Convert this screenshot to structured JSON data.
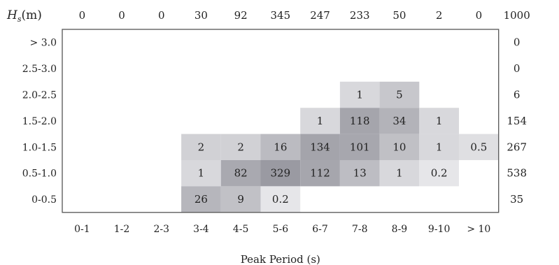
{
  "chart_data": {
    "type": "heatmap",
    "title": "",
    "xlabel": "Peak Period (s)",
    "ylabel": "Hₛ(m)",
    "ylabel_main": "H",
    "ylabel_sub": "s",
    "ylabel_unit": "(m)",
    "x_categories": [
      "0-1",
      "1-2",
      "2-3",
      "3-4",
      "4-5",
      "5-6",
      "6-7",
      "7-8",
      "8-9",
      "9-10",
      "> 10"
    ],
    "y_categories": [
      "> 3.0",
      "2.5-3.0",
      "2.0-2.5",
      "1.5-2.0",
      "1.0-1.5",
      "0.5-1.0",
      "0-0.5"
    ],
    "column_totals": [
      "0",
      "0",
      "0",
      "30",
      "92",
      "345",
      "247",
      "233",
      "50",
      "2",
      "0"
    ],
    "grand_total": "1000",
    "row_totals": [
      "0",
      "0",
      "6",
      "154",
      "267",
      "538",
      "35"
    ],
    "cells": [
      {
        "row": "2.0-2.5",
        "col": "7-8",
        "value": "1"
      },
      {
        "row": "2.0-2.5",
        "col": "8-9",
        "value": "5"
      },
      {
        "row": "1.5-2.0",
        "col": "6-7",
        "value": "1"
      },
      {
        "row": "1.5-2.0",
        "col": "7-8",
        "value": "118"
      },
      {
        "row": "1.5-2.0",
        "col": "8-9",
        "value": "34"
      },
      {
        "row": "1.5-2.0",
        "col": "9-10",
        "value": "1"
      },
      {
        "row": "1.0-1.5",
        "col": "3-4",
        "value": "2"
      },
      {
        "row": "1.0-1.5",
        "col": "4-5",
        "value": "2"
      },
      {
        "row": "1.0-1.5",
        "col": "5-6",
        "value": "16"
      },
      {
        "row": "1.0-1.5",
        "col": "6-7",
        "value": "134"
      },
      {
        "row": "1.0-1.5",
        "col": "7-8",
        "value": "101"
      },
      {
        "row": "1.0-1.5",
        "col": "8-9",
        "value": "10"
      },
      {
        "row": "1.0-1.5",
        "col": "9-10",
        "value": "1"
      },
      {
        "row": "1.0-1.5",
        "col": "> 10",
        "value": "0.5"
      },
      {
        "row": "0.5-1.0",
        "col": "3-4",
        "value": "1"
      },
      {
        "row": "0.5-1.0",
        "col": "4-5",
        "value": "82"
      },
      {
        "row": "0.5-1.0",
        "col": "5-6",
        "value": "329"
      },
      {
        "row": "0.5-1.0",
        "col": "6-7",
        "value": "112"
      },
      {
        "row": "0.5-1.0",
        "col": "7-8",
        "value": "13"
      },
      {
        "row": "0.5-1.0",
        "col": "8-9",
        "value": "1"
      },
      {
        "row": "0.5-1.0",
        "col": "9-10",
        "value": "0.2"
      },
      {
        "row": "0-0.5",
        "col": "3-4",
        "value": "26"
      },
      {
        "row": "0-0.5",
        "col": "4-5",
        "value": "9"
      },
      {
        "row": "0-0.5",
        "col": "5-6",
        "value": "0.2"
      }
    ],
    "color_scale": {
      "low": "#f2f2f4",
      "high": "#9a9aa2"
    },
    "grid": false,
    "legend": "none"
  }
}
